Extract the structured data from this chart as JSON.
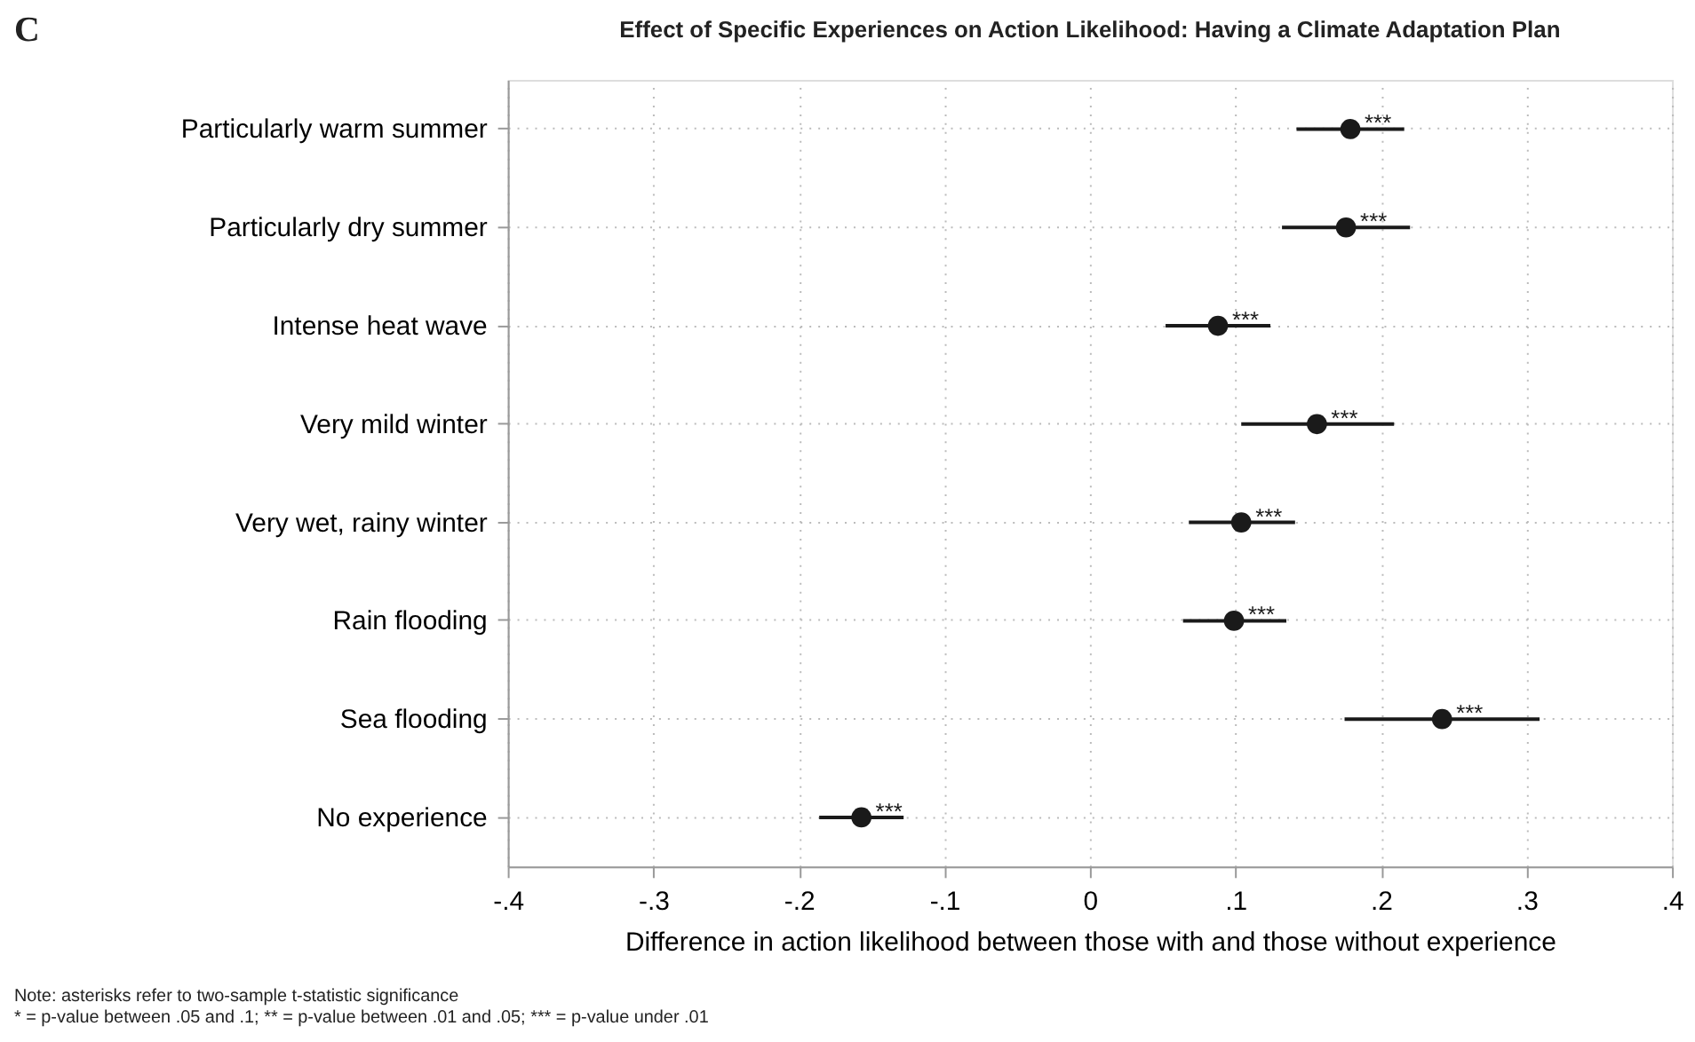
{
  "chart_data": {
    "type": "scatter",
    "orientation": "horizontal",
    "title": "Effect of Specific Experiences on Action Likelihood: Having a Climate Adaptation Plan",
    "xlabel": "Difference in action likelihood between those with and those without experience",
    "categories": [
      "Particularly warm summer",
      "Particularly dry summer",
      "Intense heat wave",
      "Very mild winter",
      "Very wet, rainy winter",
      "Rain flooding",
      "Sea flooding",
      "No experience"
    ],
    "series": [
      {
        "color": "#1a1a1a",
        "values": [
          0.179,
          0.176,
          0.088,
          0.156,
          0.104,
          0.099,
          0.242,
          -0.157
        ],
        "errors": [
          [
            0.142,
            0.216
          ],
          [
            0.132,
            0.22
          ],
          [
            0.052,
            0.124
          ],
          [
            0.104,
            0.209
          ],
          [
            0.068,
            0.141
          ],
          [
            0.064,
            0.135
          ],
          [
            0.175,
            0.309
          ],
          [
            -0.186,
            -0.128
          ]
        ]
      }
    ],
    "xlim": [
      -0.4,
      0.4
    ],
    "xticks": [
      {
        "value": -0.4,
        "label": "-.4"
      },
      {
        "value": -0.3,
        "label": "-.3"
      },
      {
        "value": -0.2,
        "label": "-.2"
      },
      {
        "value": -0.1,
        "label": "-.1"
      },
      0,
      {
        "value": 0.1,
        "label": ".1"
      },
      {
        "value": 0.2,
        "label": ".2"
      },
      {
        "value": 0.3,
        "label": ".3"
      },
      {
        "value": 0.4,
        "label": ".4"
      }
    ],
    "grid": true,
    "marker": "circle",
    "legend": false,
    "annotations": [
      "C",
      {
        "text": "***",
        "x": 0.179,
        "y": "Particularly warm summer"
      },
      {
        "text": "***",
        "x": 0.176,
        "y": "Particularly dry summer"
      },
      {
        "text": "***",
        "x": 0.088,
        "y": "Intense heat wave"
      },
      {
        "text": "***",
        "x": 0.156,
        "y": "Very mild winter"
      },
      {
        "text": "***",
        "x": 0.104,
        "y": "Very wet, rainy winter"
      },
      {
        "text": "***",
        "x": 0.099,
        "y": "Rain flooding"
      },
      {
        "text": "***",
        "x": 0.242,
        "y": "Sea flooding"
      },
      {
        "text": "***",
        "x": -0.157,
        "y": "No experience"
      },
      "Note: asterisks refer to two-sample t-statistic significance",
      "* = p-value between .05 and .1; ** = p-value between .01 and .05; *** = p-value under .01"
    ]
  }
}
